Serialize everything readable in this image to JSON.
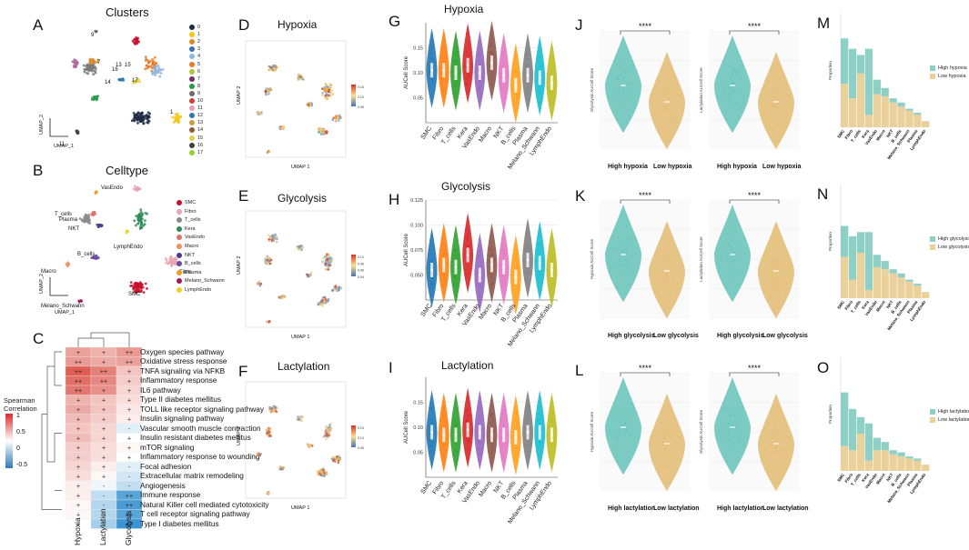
{
  "panels": {
    "A": {
      "letter": "A",
      "title": "Clusters",
      "xaxis": "UMAP_1",
      "yaxis": "UMAP_2",
      "cluster_ids": [
        "0",
        "1",
        "2",
        "3",
        "4",
        "5",
        "6",
        "7",
        "8",
        "9",
        "10",
        "11",
        "12",
        "13",
        "14",
        "15",
        "16",
        "17"
      ],
      "cluster_colors": [
        "#1f2a44",
        "#f5c518",
        "#d98a2b",
        "#3b6fb6",
        "#8fb8e0",
        "#e87c2c",
        "#b5c43a",
        "#7a2a6a",
        "#2a9a4a",
        "#6d6d6d",
        "#d43a3a",
        "#e8a0b0",
        "#2a7ab0",
        "#c8a040",
        "#8a5a3a",
        "#e0d050",
        "#404040",
        "#9acd32"
      ],
      "in_plot_labels": [
        "9",
        "7",
        "13",
        "15",
        "16",
        "14",
        "17",
        "11",
        "1"
      ]
    },
    "B": {
      "letter": "B",
      "title": "Celltype",
      "xaxis": "UMAP_1",
      "yaxis": "UMAP_2",
      "celltypes": [
        "SMC",
        "Fibro",
        "T_cells",
        "Kera",
        "VasEndo",
        "Macro",
        "NKT",
        "B_cells",
        "Plasma",
        "Melano_Schwann",
        "LymphEndo"
      ],
      "celltype_colors": [
        "#c8102e",
        "#e8a6b0",
        "#8c8c8c",
        "#2e8b57",
        "#e07070",
        "#f09060",
        "#4a3a8a",
        "#6b4aa0",
        "#e8a020",
        "#a0185a",
        "#f0d020"
      ],
      "in_plot_labels": [
        "Plasma",
        "VasEndo",
        "T_cells",
        "NKT",
        "LymphEndo",
        "B_cells",
        "Macro",
        "Fibro",
        "SMC",
        "Melano_Schwann"
      ]
    },
    "C": {
      "letter": "C",
      "legend_title": "Spearman\nCorrelation",
      "legend_ticks": [
        "1",
        "0.5",
        "0",
        "-0.5"
      ],
      "columns": [
        "Hypoxia",
        "Lactylation",
        "Glycolysis"
      ],
      "pathways": [
        "Oxygen species pathway",
        "Oxidative  stress response",
        "TNFA signaling via NFKB",
        "Inflammatory response",
        "IL6 pathway",
        "Type II diabetes mellitus",
        "TOLL like receptor signaling  pathway",
        "Insulin signaling pathway",
        "Vascular smooth muscle contraction",
        "Insulin resistant diabetes mellitus",
        "mTOR signaling",
        "Inflammatory response to wounding",
        "Focal adhesion",
        "Extracellular matrix remodeling",
        "Angiogenesis",
        "Immune response",
        "Natural Killer cell mediated cytotoxicity",
        "T cell receptor signaling pathway",
        "Type I diabetes mellitus"
      ],
      "values": [
        [
          0.55,
          0.45,
          0.6
        ],
        [
          0.6,
          0.5,
          0.55
        ],
        [
          0.95,
          0.75,
          0.35
        ],
        [
          0.85,
          0.7,
          0.3
        ],
        [
          0.8,
          0.65,
          0.25
        ],
        [
          0.45,
          0.35,
          0.2
        ],
        [
          0.5,
          0.35,
          0.15
        ],
        [
          0.4,
          0.3,
          0.1
        ],
        [
          0.35,
          0.25,
          -0.1
        ],
        [
          0.4,
          0.25,
          0.0
        ],
        [
          0.3,
          0.2,
          0.05
        ],
        [
          0.3,
          0.2,
          0.0
        ],
        [
          0.25,
          0.1,
          -0.1
        ],
        [
          0.2,
          0.05,
          -0.15
        ],
        [
          0.1,
          -0.05,
          -0.2
        ],
        [
          0.1,
          -0.2,
          -0.55
        ],
        [
          0.05,
          -0.25,
          -0.6
        ],
        [
          0.05,
          -0.25,
          -0.55
        ],
        [
          0.0,
          -0.3,
          -0.65
        ]
      ],
      "marks": [
        [
          "+",
          "+",
          "++"
        ],
        [
          "++",
          "+",
          "++"
        ],
        [
          "++",
          "++",
          "+"
        ],
        [
          "++",
          "++",
          "+"
        ],
        [
          "++",
          "+",
          "+"
        ],
        [
          "+",
          "+",
          "+"
        ],
        [
          "+",
          "+",
          "+"
        ],
        [
          "+",
          "+",
          "+"
        ],
        [
          "+",
          "+",
          "-"
        ],
        [
          "+",
          "+",
          "+"
        ],
        [
          "+",
          "+",
          "+"
        ],
        [
          "+",
          "+",
          "+"
        ],
        [
          "+",
          "+",
          "-"
        ],
        [
          "+",
          "+",
          "-"
        ],
        [
          "+",
          "-",
          "-"
        ],
        [
          "+",
          "-",
          "++"
        ],
        [
          "+",
          "-",
          "++"
        ],
        [
          "+",
          "-",
          "++"
        ],
        [
          "+",
          "-",
          "++"
        ]
      ]
    },
    "D": {
      "letter": "D",
      "title": "Hypoxia",
      "xaxis": "UMAP 1",
      "yaxis": "UMAP 2",
      "scale": [
        "0.15",
        "0.10",
        "0.05"
      ]
    },
    "E": {
      "letter": "E",
      "title": "Glycolysis",
      "xaxis": "UMAP 1",
      "yaxis": "UMAP 2",
      "scale": [
        "0.10",
        "0.08",
        "0.06",
        "0.04"
      ]
    },
    "F": {
      "letter": "F",
      "title": "Lactylation",
      "xaxis": "UMAP 1",
      "yaxis": "UMAP 2",
      "scale": [
        "0.15",
        "0.10",
        "0.05"
      ]
    },
    "G": {
      "letter": "G",
      "title": "Hypoxia",
      "ylabel": "AUCell Score"
    },
    "H": {
      "letter": "H",
      "title": "Glycolysis",
      "ylabel": "AUCell Score"
    },
    "I": {
      "letter": "I",
      "title": "Lactylation",
      "ylabel": "AUCell Score"
    },
    "J": {
      "letter": "J",
      "sig": "****",
      "left_ylabel": "Glycolysis AUCell Score",
      "right_ylabel": "Lactylation AUCell Score",
      "groups": [
        "High hypoxia",
        "Low hypoxia"
      ]
    },
    "K": {
      "letter": "K",
      "sig": "****",
      "left_ylabel": "Hypoxia AUCell Score",
      "right_ylabel": "Lactylation AUCell Score",
      "groups": [
        "High glycolysis",
        "Low glycolysis"
      ]
    },
    "L": {
      "letter": "L",
      "sig": "****",
      "left_ylabel": "Hypoxia AUCell Score",
      "right_ylabel": "Glycolysis AUCell Score",
      "groups": [
        "High lactylation",
        "Low lactylation"
      ]
    },
    "M": {
      "letter": "M",
      "ylabel": "Proportion",
      "legend": [
        "High hypoxia",
        "Low hypoxia"
      ]
    },
    "N": {
      "letter": "N",
      "ylabel": "Proportion",
      "legend": [
        "High glycolysis",
        "Low glycolysis"
      ]
    },
    "O": {
      "letter": "O",
      "ylabel": "Proportion",
      "legend": [
        "High lactylation",
        "Low lactylation"
      ]
    }
  },
  "chart_data": [
    {
      "type": "violin",
      "title": "Hypoxia",
      "ylabel": "AUCell Score",
      "categories": [
        "SMC",
        "Fibro",
        "T_cells",
        "Kera",
        "VasEndo",
        "Macro",
        "NKT",
        "B_cells",
        "Plasma",
        "Melano_Schwann",
        "LymphEndo"
      ],
      "medians": [
        0.105,
        0.105,
        0.1,
        0.115,
        0.1,
        0.12,
        0.095,
        0.075,
        0.095,
        0.09,
        0.08
      ],
      "ylim": [
        0.0,
        0.2
      ],
      "yticks": [
        "0.15",
        "0.10",
        "0.05"
      ]
    },
    {
      "type": "violin",
      "title": "Glycolysis",
      "ylabel": "AUCell Score",
      "categories": [
        "SMC",
        "Fibro",
        "T_cells",
        "Kera",
        "VasEndo",
        "Macro",
        "NKT",
        "B_cells",
        "Plasma",
        "Melano_Schwann",
        "LymphEndo"
      ],
      "medians": [
        0.055,
        0.06,
        0.058,
        0.07,
        0.05,
        0.06,
        0.058,
        0.048,
        0.065,
        0.062,
        0.055
      ],
      "ylim": [
        0.025,
        0.125
      ],
      "yticks": [
        "0.125",
        "0.100",
        "0.075",
        "0.050"
      ]
    },
    {
      "type": "violin",
      "title": "Lactylation",
      "ylabel": "AUCell Score",
      "categories": [
        "SMC",
        "Fibro",
        "T_cells",
        "Kera",
        "VasEndo",
        "Macro",
        "NKT",
        "B_cells",
        "Plasma",
        "Melano_Schwann",
        "LymphEndo"
      ],
      "medians": [
        0.09,
        0.085,
        0.085,
        0.095,
        0.09,
        0.085,
        0.085,
        0.08,
        0.09,
        0.09,
        0.085
      ],
      "ylim": [
        0.0,
        0.2
      ],
      "yticks": [
        "0.15",
        "0.10",
        "0.05"
      ]
    },
    {
      "type": "stacked_bar",
      "panel": "M",
      "categories": [
        "SMC",
        "Fibro",
        "T_cells",
        "Kera",
        "VasEndo",
        "Macro",
        "NKT",
        "B_cells",
        "Melano_Schwann",
        "Plasma",
        "LymphEndo"
      ],
      "series": [
        {
          "name": "High hypoxia",
          "values": [
            0.22,
            0.24,
            0.09,
            0.32,
            0.07,
            0.04,
            0.02,
            0.02,
            0.01,
            0.01,
            0.0
          ]
        },
        {
          "name": "Low hypoxia",
          "values": [
            0.21,
            0.14,
            0.26,
            0.06,
            0.16,
            0.15,
            0.12,
            0.1,
            0.08,
            0.06,
            0.03
          ]
        }
      ]
    },
    {
      "type": "stacked_bar",
      "panel": "N",
      "categories": [
        "SMC",
        "Fibro",
        "T_cells",
        "Kera",
        "VasEndo",
        "Macro",
        "NKT",
        "B_cells",
        "Melano_Schwann",
        "Plasma",
        "LymphEndo"
      ],
      "series": [
        {
          "name": "High glycolysis",
          "values": [
            0.15,
            0.21,
            0.1,
            0.28,
            0.06,
            0.04,
            0.02,
            0.02,
            0.01,
            0.01,
            0.0
          ]
        },
        {
          "name": "Low glycolysis",
          "values": [
            0.2,
            0.09,
            0.22,
            0.04,
            0.15,
            0.14,
            0.12,
            0.1,
            0.08,
            0.06,
            0.03
          ]
        }
      ]
    },
    {
      "type": "stacked_bar",
      "panel": "O",
      "categories": [
        "SMC",
        "Fibro",
        "T_cells",
        "Kera",
        "VasEndo",
        "Macro",
        "NKT",
        "B_cells",
        "Melano_Schwann",
        "Plasma",
        "LymphEndo"
      ],
      "series": [
        {
          "name": "High lactylation",
          "values": [
            0.26,
            0.2,
            0.08,
            0.18,
            0.06,
            0.04,
            0.02,
            0.02,
            0.01,
            0.01,
            0.0
          ]
        },
        {
          "name": "Low lactylation",
          "values": [
            0.12,
            0.1,
            0.18,
            0.05,
            0.1,
            0.1,
            0.08,
            0.07,
            0.06,
            0.05,
            0.03
          ]
        }
      ]
    }
  ]
}
